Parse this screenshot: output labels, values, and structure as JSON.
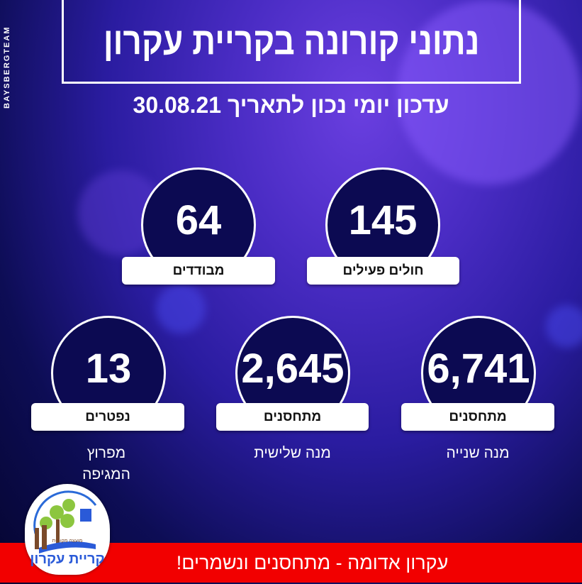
{
  "side_credit": "BAYSBERGTEAM",
  "title": "נתוני קורונה בקריית עקרון",
  "subtitle": "עדכון יומי נכון לתאריך 30.08.21",
  "stats": [
    {
      "value": "145",
      "label": "חולים פעילים",
      "note": ""
    },
    {
      "value": "64",
      "label": "מבודדים",
      "note": ""
    },
    {
      "value": "6,741",
      "label": "מתחסנים",
      "note": "מנה שנייה"
    },
    {
      "value": "2,645",
      "label": "מתחסנים",
      "note": "מנה שלישית"
    },
    {
      "value": "13",
      "label": "נפטרים",
      "note": "מפרוץ המגיפה"
    }
  ],
  "logo": {
    "name": "קריית עקרון",
    "subtitle": "מועצה מקומית"
  },
  "banner": "עקרון אדומה - מתחסנים ונשמרים!",
  "colors": {
    "banner": "#f20000",
    "circle": "#0c0a52",
    "background": "#2a1ca0"
  }
}
